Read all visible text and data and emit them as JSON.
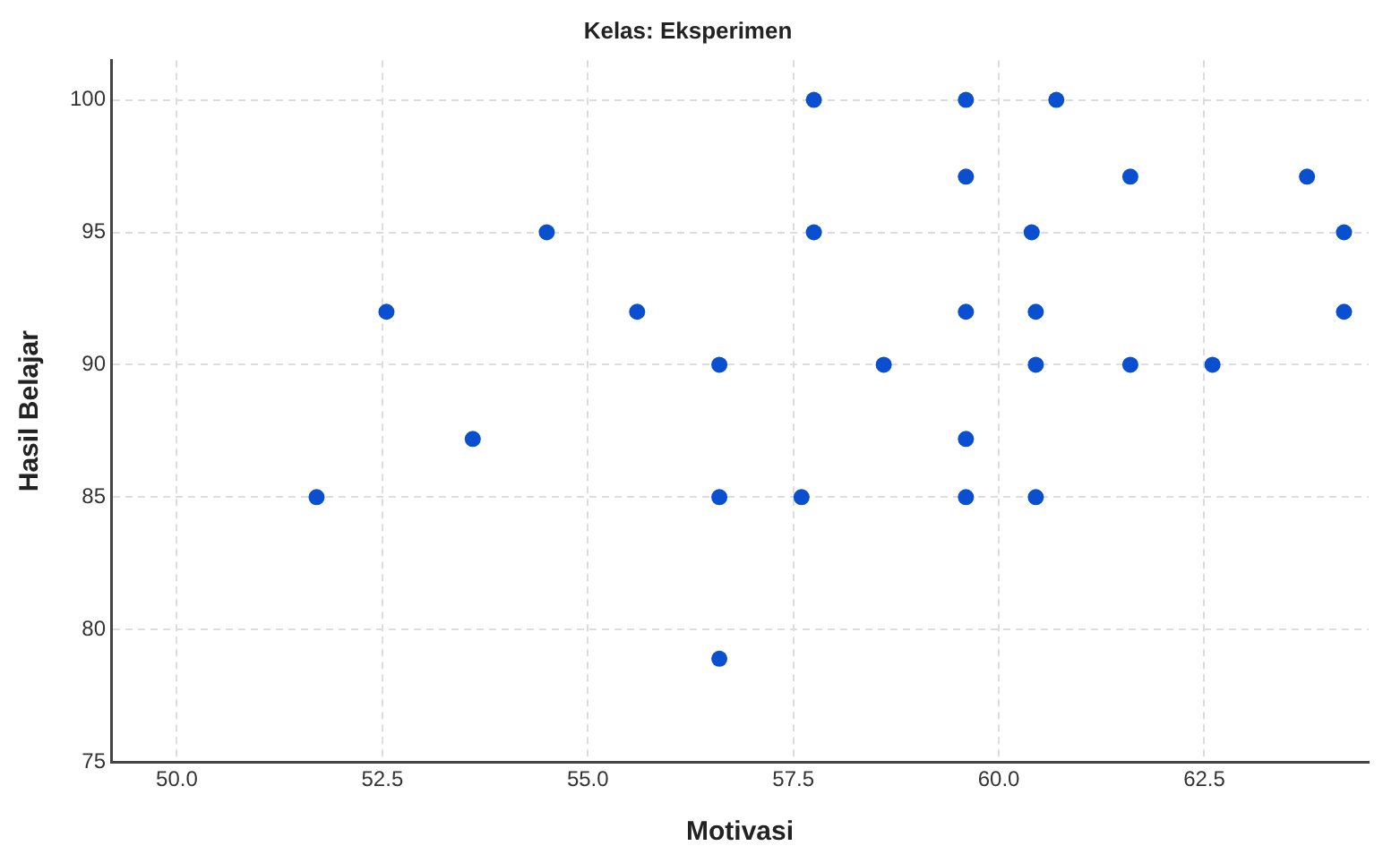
{
  "chart_data": {
    "type": "scatter",
    "title": "Kelas: Eksperimen",
    "xlabel": "Motivasi",
    "ylabel": "Hasil Belajar",
    "x": [
      51.7,
      52.55,
      53.6,
      54.5,
      55.6,
      56.6,
      56.6,
      56.6,
      57.6,
      57.75,
      57.75,
      58.6,
      59.6,
      59.6,
      59.6,
      59.6,
      59.6,
      60.4,
      60.45,
      60.45,
      60.45,
      60.7,
      61.6,
      61.6,
      62.6,
      63.75,
      64.2,
      64.2
    ],
    "series": [
      {
        "color": "#0a4fd0",
        "values": [
          85,
          92,
          87.2,
          95,
          92,
          90,
          85,
          78.9,
          85,
          100,
          95,
          90,
          100,
          97.1,
          92,
          87.2,
          85,
          95,
          92,
          90,
          85,
          100,
          97.1,
          90,
          90,
          97.1,
          95,
          92
        ]
      }
    ],
    "xlim": [
      49.2,
      64.5
    ],
    "xticks": [
      {
        "value": 50,
        "label": "50.0"
      },
      {
        "value": 52.5,
        "label": "52.5"
      },
      {
        "value": 55,
        "label": "55.0"
      },
      {
        "value": 57.5,
        "label": "57.5"
      },
      {
        "value": 60,
        "label": "60.0"
      },
      {
        "value": 62.5,
        "label": "62.5"
      }
    ],
    "ylim": [
      75,
      101.5
    ],
    "yticks": [
      75,
      80,
      85,
      90,
      95,
      100
    ],
    "grid": true,
    "legend": false,
    "marker": "circle"
  }
}
